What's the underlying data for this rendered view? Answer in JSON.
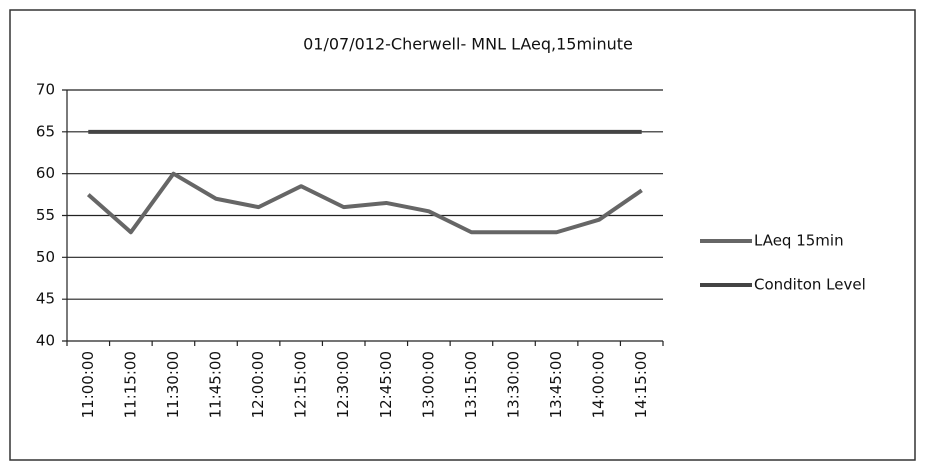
{
  "chart_data": {
    "type": "line",
    "title": "01/07/012-Cherwell- MNL LAeq,15minute",
    "categories": [
      "11:00:00",
      "11:15:00",
      "11:30:00",
      "11:45:00",
      "12:00:00",
      "12:15:00",
      "12:30:00",
      "12:45:00",
      "13:00:00",
      "13:15:00",
      "13:30:00",
      "13:45:00",
      "14:00:00",
      "14:15:00"
    ],
    "series": [
      {
        "name": "LAeq 15min",
        "color": "#666666",
        "values": [
          57.5,
          53,
          60,
          57,
          56,
          58.5,
          56,
          56.5,
          55.5,
          53,
          53,
          53,
          54.5,
          58
        ]
      },
      {
        "name": "Conditon Level",
        "color": "#444444",
        "values": [
          65,
          65,
          65,
          65,
          65,
          65,
          65,
          65,
          65,
          65,
          65,
          65,
          65,
          65
        ]
      }
    ],
    "ylim": [
      40,
      70
    ],
    "yticks": [
      40,
      45,
      50,
      55,
      60,
      65,
      70
    ],
    "grid": true,
    "legend": "right"
  }
}
